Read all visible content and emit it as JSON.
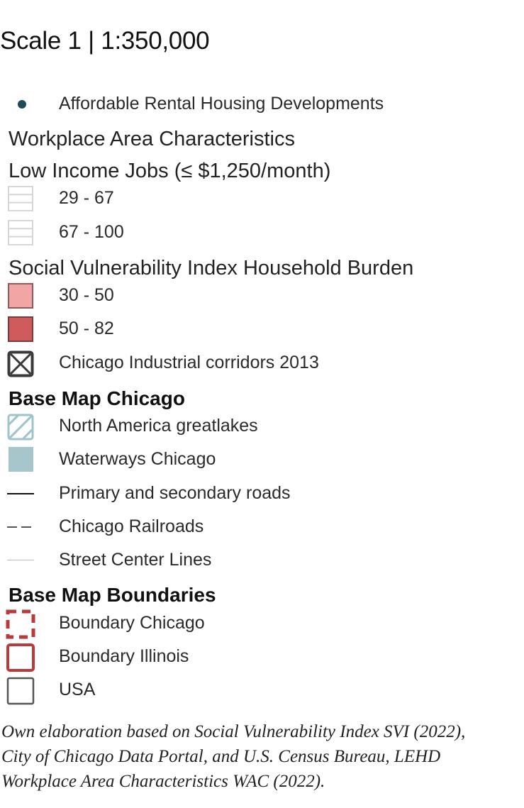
{
  "map_legend": {
    "scale_title": "Scale 1 | 1:350,000",
    "affordable_housing": {
      "label": "Affordable Rental Housing Developments",
      "color": "#1e4b57",
      "icon": "dot-icon"
    },
    "wac": {
      "heading": "Workplace Area Characteristics",
      "subheading": "Low Income Jobs (≤ $1,250/month)",
      "items": [
        {
          "label": "29 - 67",
          "icon": "horizontal-hatch-icon",
          "color": "#d6d6d6"
        },
        {
          "label": "67 - 100",
          "icon": "horizontal-hatch-icon",
          "color": "#d6d6d6"
        }
      ]
    },
    "svi": {
      "heading": "Social Vulnerability Index Household Burden",
      "items": [
        {
          "label": "30 - 50",
          "color": "#f2a5a5",
          "border": "#8f5a5a"
        },
        {
          "label": "50 - 82",
          "color": "#cf5b5d",
          "border": "#7a3b3b"
        }
      ],
      "corridors": {
        "label": "Chicago Industrial corridors 2013",
        "icon": "x-box-icon",
        "color": "#3a3a3a"
      }
    },
    "base_map": {
      "heading": "Base Map Chicago",
      "items": [
        {
          "label": "North America greatlakes",
          "icon": "diagonal-hatch-icon",
          "color": "#9ec3ca"
        },
        {
          "label": "Waterways Chicago",
          "icon": "fill-square-icon",
          "color": "#a6c6cc"
        },
        {
          "label": "Primary and secondary roads",
          "icon": "solid-line-icon",
          "color": "#111111"
        },
        {
          "label": "Chicago Railroads",
          "icon": "dashed-line-icon",
          "color": "#555555"
        },
        {
          "label": "Street Center Lines",
          "icon": "thin-line-icon",
          "color": "#bdbdbd"
        }
      ]
    },
    "boundaries": {
      "heading": "Base Map Boundaries",
      "items": [
        {
          "label": "Boundary Chicago",
          "icon": "dashed-box-icon",
          "color": "#b83a3a"
        },
        {
          "label": "Boundary Illinois",
          "icon": "outline-box-icon",
          "color": "#b83a3a"
        },
        {
          "label": "USA",
          "icon": "outline-box-icon",
          "color": "#555555"
        }
      ]
    },
    "credit": [
      "Own elaboration based on Social Vulnerability Index SVI (2022),",
      "City of Chicago Data Portal, and U.S. Census Bureau, LEHD",
      "Workplace Area Characteristics WAC (2022)."
    ]
  }
}
